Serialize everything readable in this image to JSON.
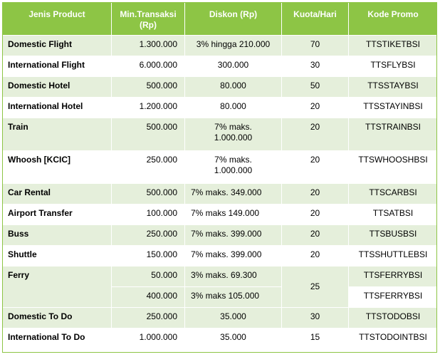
{
  "table": {
    "headers": {
      "product": "Jenis Product",
      "min": "Min.Transaksi (Rp)",
      "diskon": "Diskon (Rp)",
      "kuota": "Kuota/Hari",
      "kode": "Kode Promo"
    },
    "rows": [
      {
        "product": "Domestic Flight",
        "min": "1.300.000",
        "diskon": "3% hingga 210.000",
        "kuota": "70",
        "kode": "TTSTIKETBSI"
      },
      {
        "product": "International Flight",
        "min": "6.000.000",
        "diskon": "300.000",
        "kuota": "30",
        "kode": "TTSFLYBSI"
      },
      {
        "product": "Domestic Hotel",
        "min": "500.000",
        "diskon": "80.000",
        "kuota": "50",
        "kode": "TTSSTAYBSI"
      },
      {
        "product": "International Hotel",
        "min": "1.200.000",
        "diskon": "80.000",
        "kuota": "20",
        "kode": "TTSSTAYINBSI"
      },
      {
        "product": "Train",
        "min": "500.000",
        "diskon_line1": "7% maks.",
        "diskon_line2": "1.000.000",
        "kuota": "20",
        "kode": "TTSTRAINBSI"
      },
      {
        "product": "Whoosh [KCIC]",
        "min": "250.000",
        "diskon_line1": "7% maks.",
        "diskon_line2": "1.000.000",
        "kuota": "20",
        "kode": "TTSWHOOSHBSI"
      },
      {
        "product": "Car Rental",
        "min": "500.000",
        "diskon": "7% maks. 349.000",
        "kuota": "20",
        "kode": "TTSCARBSI"
      },
      {
        "product": "Airport Transfer",
        "min": "100.000",
        "diskon": "7% maks 149.000",
        "kuota": "20",
        "kode": "TTSATBSI"
      },
      {
        "product": "Buss",
        "min": "250.000",
        "diskon": "7% maks. 399.000",
        "kuota": "20",
        "kode": "TTSBUSBSI"
      },
      {
        "product": "Shuttle",
        "min": "150.000",
        "diskon": "7% maks. 399.000",
        "kuota": "20",
        "kode": "TTSSHUTTLEBSI"
      },
      {
        "product": "Ferry",
        "min": "50.000",
        "diskon": "3% maks. 69.300",
        "kuota": "25",
        "kode": "TTSFERRYBSI"
      },
      {
        "min": "400.000",
        "diskon": "3% maks 105.000",
        "kode": "TTSFERRYBSI"
      },
      {
        "product": "Domestic To Do",
        "min": "250.000",
        "diskon": "35.000",
        "kuota": "30",
        "kode": "TTSTODOBSI"
      },
      {
        "product": "International To Do",
        "min": "1.000.000",
        "diskon": "35.000",
        "kuota": "15",
        "kode": "TTSTODOINTBSI"
      }
    ]
  }
}
